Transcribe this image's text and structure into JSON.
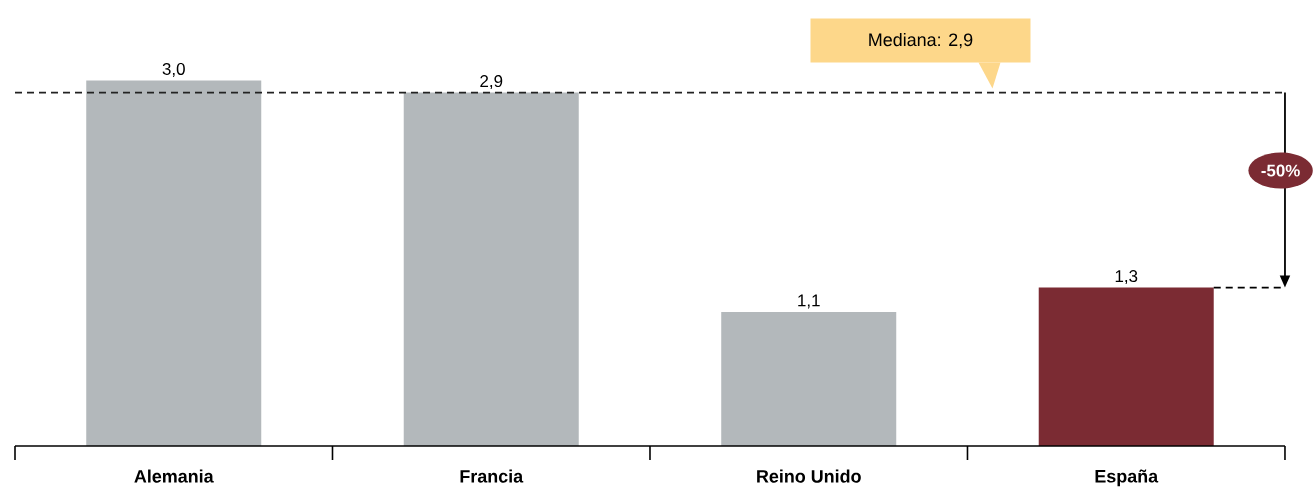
{
  "chart_data": {
    "type": "bar",
    "categories": [
      "Alemania",
      "Francia",
      "Reino Unido",
      "España"
    ],
    "values": [
      3.0,
      2.9,
      1.1,
      1.3
    ],
    "colors": [
      "#b3b8bb",
      "#b3b8bb",
      "#b3b8bb",
      "#7b2b33"
    ],
    "value_labels": [
      "3,0",
      "2,9",
      "1,1",
      "1,3"
    ],
    "ref_lines": [
      {
        "axis": "y",
        "value": 2.9,
        "label": "Mediana: 2,9",
        "color": "#222222",
        "line_style": "dashed"
      }
    ],
    "annotations": [
      "-50%"
    ]
  }
}
